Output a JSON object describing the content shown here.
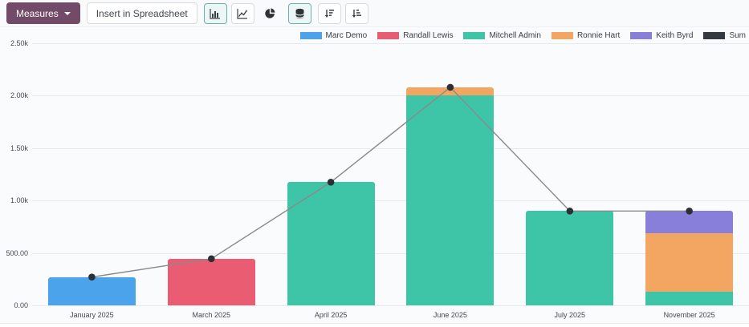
{
  "toolbar": {
    "measures_label": "Measures",
    "insert_label": "Insert in Spreadsheet",
    "icons": [
      {
        "name": "bar-chart-icon",
        "active": true
      },
      {
        "name": "line-chart-icon",
        "active": false
      },
      {
        "name": "pie-chart-icon",
        "active": false
      },
      {
        "name": "stacked-icon",
        "active": true
      },
      {
        "name": "sort-descending-icon",
        "active": false
      },
      {
        "name": "sort-ascending-icon",
        "active": false
      }
    ]
  },
  "colors": {
    "primary_button": "#714B67",
    "active_toggle_border": "#69b0ac",
    "active_toggle_bg": "#edf6f6",
    "grid": "#e7e9ec",
    "sum_line": "#8a8a8a",
    "sum_point": "#2b3036",
    "surface": "#fafbfd"
  },
  "chart_data": {
    "type": "bar",
    "stacked": true,
    "title": "",
    "xlabel": "",
    "ylabel": "",
    "grid": true,
    "legend_position": "top-right",
    "ylim": [
      0,
      2500
    ],
    "categories": [
      "January 2025",
      "March 2025",
      "April 2025",
      "June 2025",
      "July 2025",
      "November 2025"
    ],
    "y_ticks": [
      {
        "label": "0.00",
        "value": 0
      },
      {
        "label": "500.00",
        "value": 500
      },
      {
        "label": "1.00k",
        "value": 1000
      },
      {
        "label": "1.50k",
        "value": 1500
      },
      {
        "label": "2.00k",
        "value": 2000
      },
      {
        "label": "2.50k",
        "value": 2500
      }
    ],
    "series": [
      {
        "name": "Marc Demo",
        "type": "bar",
        "color": "#4AA3EB",
        "values": [
          270,
          0,
          0,
          0,
          0,
          0
        ]
      },
      {
        "name": "Randall Lewis",
        "type": "bar",
        "color": "#EA5C72",
        "values": [
          0,
          445,
          0,
          0,
          0,
          0
        ]
      },
      {
        "name": "Mitchell Admin",
        "type": "bar",
        "color": "#3EC4A7",
        "values": [
          0,
          0,
          1175,
          2000,
          900,
          130
        ]
      },
      {
        "name": "Ronnie Hart",
        "type": "bar",
        "color": "#F3A562",
        "values": [
          0,
          0,
          0,
          80,
          0,
          560
        ]
      },
      {
        "name": "Keith Byrd",
        "type": "bar",
        "color": "#877FD9",
        "values": [
          0,
          0,
          0,
          0,
          0,
          210
        ]
      },
      {
        "name": "Sum",
        "type": "line",
        "color": "#343A40",
        "values": [
          270,
          445,
          1175,
          2080,
          900,
          900
        ]
      }
    ]
  }
}
